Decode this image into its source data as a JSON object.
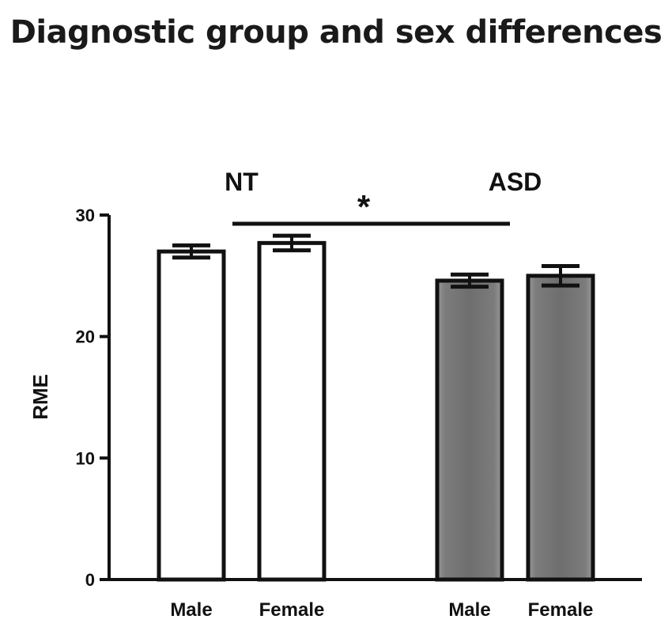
{
  "chart_data": {
    "type": "bar",
    "title": "Diagnostic group and sex differences",
    "ylabel": "RME",
    "ylim": [
      0,
      30
    ],
    "yticks": [
      0,
      10,
      20,
      30
    ],
    "groups": [
      {
        "label": "NT",
        "categories": [
          "Male",
          "Female"
        ]
      },
      {
        "label": "ASD",
        "categories": [
          "Male",
          "Female"
        ]
      }
    ],
    "categories": [
      "Male",
      "Female",
      "Male",
      "Female"
    ],
    "values": [
      27.0,
      27.7,
      24.6,
      25.0
    ],
    "errors": [
      0.5,
      0.6,
      0.5,
      0.8
    ],
    "bar_colors": [
      "#ffffff",
      "#ffffff",
      "#7a7a7a",
      "#7a7a7a"
    ],
    "significance": {
      "label": "*",
      "from_group": "NT",
      "to_group": "ASD"
    }
  }
}
